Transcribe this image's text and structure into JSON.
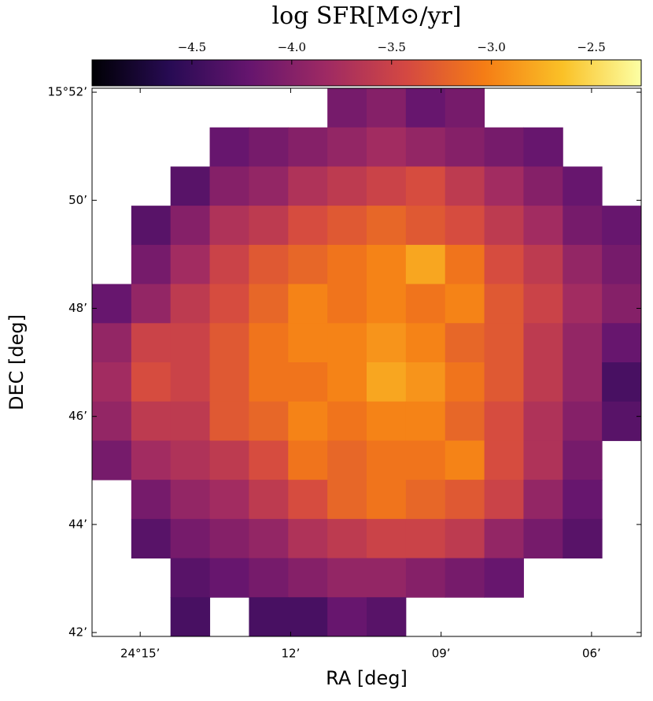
{
  "chart_data": {
    "type": "heatmap",
    "colorbar_label": "log SFR[M⊙/yr]",
    "colormap": "inferno",
    "clim": [
      -5.0,
      -2.25
    ],
    "cticks": [
      {
        "value": -4.5,
        "label": "−4.5"
      },
      {
        "value": -4.0,
        "label": "−4.0"
      },
      {
        "value": -3.5,
        "label": "−3.5"
      },
      {
        "value": -3.0,
        "label": "−3.0"
      },
      {
        "value": -2.5,
        "label": "−2.5"
      }
    ],
    "x_label": "RA [deg]",
    "y_label": "DEC [deg]",
    "xlim": [
      24.266,
      24.0835
    ],
    "xticks": [
      {
        "value": 24.25,
        "label": "24°15’"
      },
      {
        "value": 24.2,
        "label": "12’"
      },
      {
        "value": 24.15,
        "label": "09’"
      },
      {
        "value": 24.1,
        "label": "06’"
      }
    ],
    "ylim": [
      15.6988,
      15.8679
    ],
    "yticks": [
      {
        "value": 15.86667,
        "label": "15°52’"
      },
      {
        "value": 15.83333,
        "label": "50’"
      },
      {
        "value": 15.8,
        "label": "48’"
      },
      {
        "value": 15.76667,
        "label": "46’"
      },
      {
        "value": 15.73333,
        "label": "44’"
      },
      {
        "value": 15.7,
        "label": "42’"
      }
    ],
    "z": [
      [
        null,
        null,
        null,
        null,
        null,
        null,
        -4.1,
        -4.0,
        -4.2,
        -4.1,
        null,
        null,
        null,
        null
      ],
      [
        null,
        null,
        null,
        -4.2,
        -4.1,
        -4.0,
        -3.9,
        -3.8,
        -3.9,
        -4.0,
        -4.1,
        -4.2,
        null,
        null
      ],
      [
        null,
        null,
        -4.3,
        -4.0,
        -3.9,
        -3.7,
        -3.6,
        -3.5,
        -3.4,
        -3.6,
        -3.8,
        -4.0,
        -4.2,
        null
      ],
      [
        null,
        -4.3,
        -4.0,
        -3.7,
        -3.6,
        -3.4,
        -3.3,
        -3.2,
        -3.3,
        -3.4,
        -3.6,
        -3.8,
        -4.1,
        -4.2
      ],
      [
        null,
        -4.1,
        -3.8,
        -3.5,
        -3.3,
        -3.2,
        -3.1,
        -3.0,
        -2.8,
        -3.1,
        -3.4,
        -3.6,
        -3.9,
        -4.1
      ],
      [
        -4.2,
        -3.9,
        -3.6,
        -3.4,
        -3.2,
        -3.0,
        -3.1,
        -3.0,
        -3.1,
        -3.0,
        -3.3,
        -3.5,
        -3.8,
        -4.0
      ],
      [
        -3.9,
        -3.5,
        -3.5,
        -3.3,
        -3.1,
        -3.0,
        -3.0,
        -2.9,
        -3.0,
        -3.2,
        -3.3,
        -3.6,
        -3.9,
        -4.2
      ],
      [
        -3.8,
        -3.4,
        -3.5,
        -3.3,
        -3.1,
        -3.1,
        -3.0,
        -2.8,
        -2.9,
        -3.1,
        -3.3,
        -3.6,
        -3.9,
        -4.4
      ],
      [
        -3.9,
        -3.6,
        -3.6,
        -3.3,
        -3.2,
        -3.0,
        -3.1,
        -3.0,
        -3.0,
        -3.2,
        -3.4,
        -3.7,
        -4.0,
        -4.3
      ],
      [
        -4.1,
        -3.8,
        -3.7,
        -3.6,
        -3.4,
        -3.1,
        -3.2,
        -3.1,
        -3.1,
        -3.0,
        -3.4,
        -3.7,
        -4.1,
        null
      ],
      [
        null,
        -4.1,
        -3.9,
        -3.8,
        -3.6,
        -3.4,
        -3.2,
        -3.1,
        -3.2,
        -3.3,
        -3.5,
        -3.9,
        -4.2,
        null
      ],
      [
        null,
        -4.3,
        -4.1,
        -4.0,
        -3.9,
        -3.7,
        -3.6,
        -3.5,
        -3.5,
        -3.6,
        -3.9,
        -4.1,
        -4.3,
        null
      ],
      [
        null,
        null,
        -4.3,
        -4.2,
        -4.1,
        -4.0,
        -3.9,
        -3.9,
        -4.0,
        -4.1,
        -4.2,
        null,
        null,
        null
      ],
      [
        null,
        null,
        -4.4,
        null,
        -4.4,
        -4.4,
        -4.2,
        -4.3,
        null,
        null,
        null,
        null,
        null,
        null
      ]
    ]
  }
}
